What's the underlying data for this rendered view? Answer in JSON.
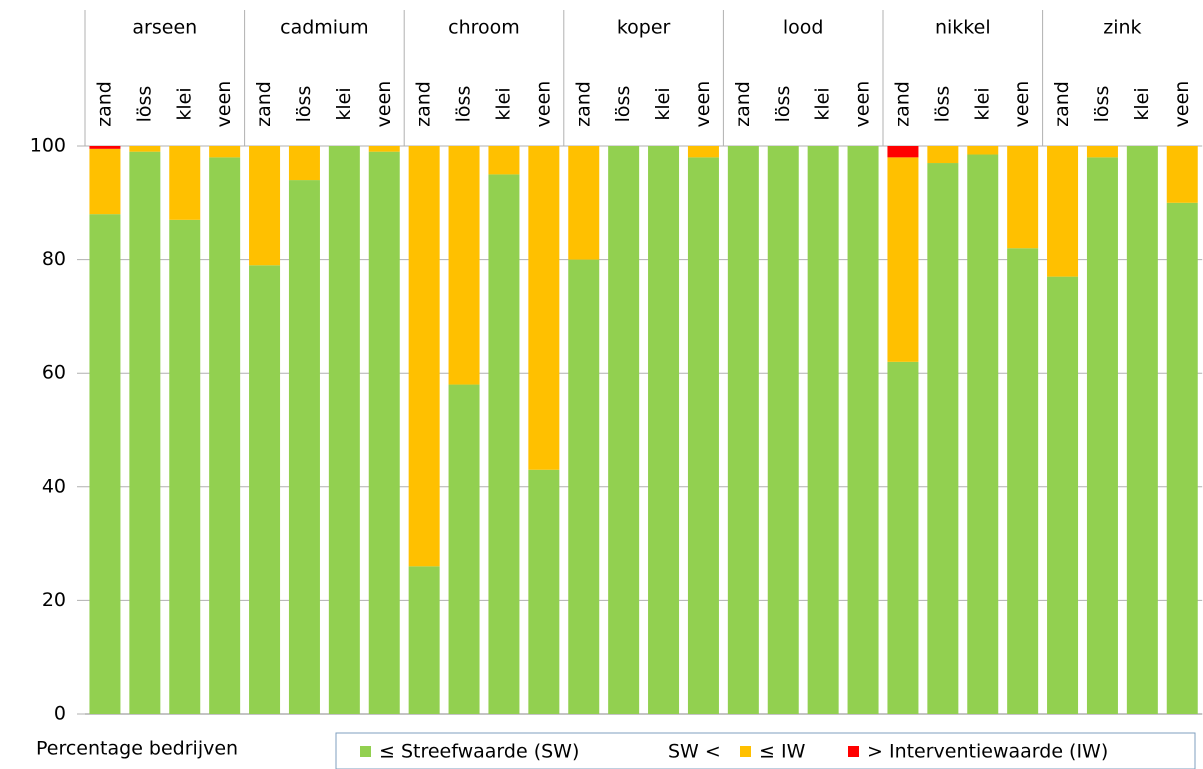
{
  "chart_data": {
    "type": "stacked-bar",
    "groups": [
      "arseen",
      "cadmium",
      "chroom",
      "koper",
      "lood",
      "nikkel",
      "zink"
    ],
    "categories": [
      "zand",
      "löss",
      "klei",
      "veen",
      "zand",
      "löss",
      "klei",
      "veen",
      "zand",
      "löss",
      "klei",
      "veen",
      "zand",
      "löss",
      "klei",
      "veen",
      "zand",
      "löss",
      "klei",
      "veen",
      "zand",
      "löss",
      "klei",
      "veen",
      "zand",
      "löss",
      "klei",
      "veen"
    ],
    "series": [
      {
        "name": "≤ Streefwaarde (SW)",
        "color": "#92d050",
        "values": [
          88,
          99,
          87,
          98,
          79,
          94,
          100,
          99,
          26,
          58,
          95,
          43,
          80,
          100,
          100,
          98,
          100,
          100,
          100,
          100,
          62,
          97,
          98.5,
          82,
          77,
          98,
          100,
          90
        ]
      },
      {
        "name": "≤ IW",
        "name_prefix": "SW <",
        "color": "#ffc000",
        "values": [
          11.5,
          1,
          13,
          2,
          21,
          6,
          0,
          1,
          74,
          42,
          5,
          57,
          20,
          0,
          0,
          2,
          0,
          0,
          0,
          0,
          36,
          3,
          1.5,
          18,
          23,
          2,
          0,
          10
        ]
      },
      {
        "name": "> Interventiewaarde (IW)",
        "color": "#ff0000",
        "values": [
          0.5,
          0,
          0,
          0,
          0,
          0,
          0,
          0,
          0,
          0,
          0,
          0,
          0,
          0,
          0,
          0,
          0,
          0,
          0,
          0,
          2,
          0,
          0,
          0,
          0,
          0,
          0,
          0
        ]
      }
    ],
    "y_label": "Percentage bedrijven",
    "ylim": [
      0,
      100
    ],
    "yticks": [
      0,
      20,
      40,
      60,
      80,
      100
    ],
    "grid": true
  }
}
